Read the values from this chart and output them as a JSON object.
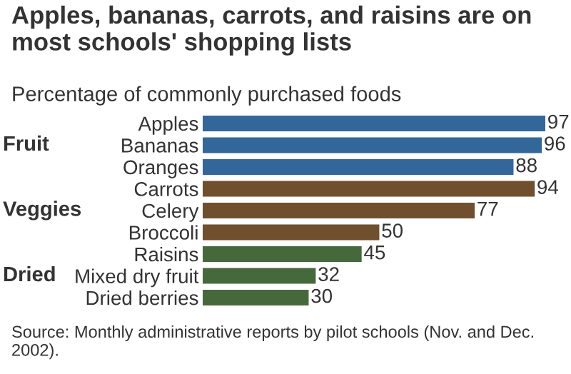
{
  "chart_data": {
    "type": "bar",
    "orientation": "horizontal",
    "title": "Apples, bananas, carrots, and raisins are on most schools' shopping lists",
    "subtitle": "Percentage of commonly purchased foods",
    "categories": [
      "Apples",
      "Bananas",
      "Oranges",
      "Carrots",
      "Celery",
      "Broccoli",
      "Raisins",
      "Mixed dry fruit",
      "Dried berries"
    ],
    "values": [
      97,
      96,
      88,
      94,
      77,
      50,
      45,
      32,
      30
    ],
    "colors": [
      "#336699",
      "#336699",
      "#336699",
      "#6f4f2d",
      "#6f4f2d",
      "#6f4f2d",
      "#46693c",
      "#46693c",
      "#46693c"
    ],
    "data_labels": true,
    "annotations": [
      "Fruit",
      "Veggies",
      "Dried",
      "Source: Monthly administrative reports by pilot schools (Nov. and Dec. 2002)."
    ]
  }
}
